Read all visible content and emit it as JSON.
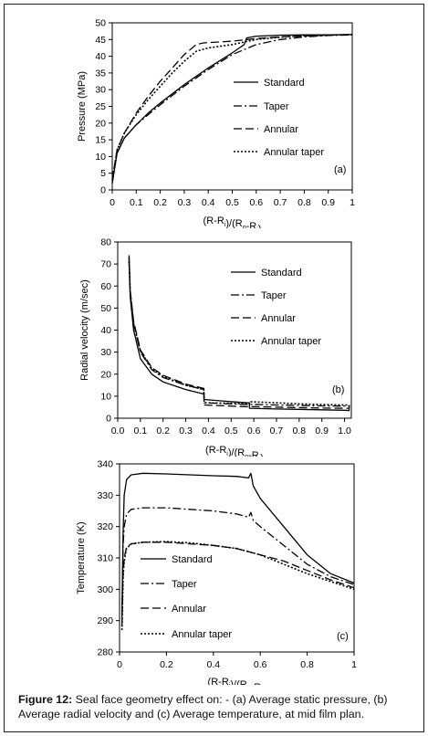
{
  "colors": {
    "line": "#000000",
    "border": "#1e1e1e"
  },
  "caption": {
    "label": "Figure 12:",
    "text": "Seal face geometry effect on: - (a) Average static pressure, (b) Average radial velocity and (c) Average temperature, at mid film plan."
  },
  "chart_data": [
    {
      "type": "line",
      "panel_label": "(a)",
      "xlabel": "(R-Ri)/(Ro-Ri)",
      "ylabel": "Pressure (MPa)",
      "xlim": [
        0,
        1
      ],
      "ylim": [
        0,
        50
      ],
      "xticks": [
        "0",
        "0.1",
        "0.2",
        "0.3",
        "0.4",
        "0.5",
        "0.6",
        "0.7",
        "0.8",
        "0.9",
        "1"
      ],
      "yticks": [
        "0",
        "5",
        "10",
        "15",
        "20",
        "25",
        "30",
        "35",
        "40",
        "45",
        "50"
      ],
      "grid": false,
      "legend_position": "right",
      "series": [
        {
          "name": "Standard",
          "style": "solid",
          "x": [
            0,
            0.02,
            0.05,
            0.1,
            0.15,
            0.2,
            0.3,
            0.4,
            0.5,
            0.55,
            0.56,
            0.6,
            0.7,
            0.8,
            0.9,
            1.0
          ],
          "y": [
            2,
            11,
            15.5,
            19.5,
            23,
            26,
            31.5,
            36.5,
            41,
            43.5,
            45.5,
            46,
            46.3,
            46.4,
            46.4,
            46.5
          ]
        },
        {
          "name": "Taper",
          "style": "dashdot",
          "x": [
            0,
            0.02,
            0.05,
            0.1,
            0.15,
            0.2,
            0.3,
            0.4,
            0.5,
            0.6,
            0.7,
            0.8,
            0.9,
            1.0
          ],
          "y": [
            2,
            11,
            15.5,
            19.5,
            22.5,
            25.5,
            31,
            36,
            40.5,
            43.5,
            45,
            45.8,
            46.2,
            46.4
          ]
        },
        {
          "name": "Annular",
          "style": "dash",
          "x": [
            0,
            0.02,
            0.05,
            0.1,
            0.15,
            0.2,
            0.25,
            0.3,
            0.35,
            0.38,
            0.5,
            0.6,
            0.7,
            0.8,
            0.9,
            1.0
          ],
          "y": [
            3,
            12,
            17,
            23,
            28,
            32.5,
            36.5,
            40.5,
            43.5,
            44,
            44.5,
            45.3,
            45.8,
            46.1,
            46.3,
            46.5
          ]
        },
        {
          "name": "Annular taper",
          "style": "dot",
          "x": [
            0,
            0.02,
            0.05,
            0.1,
            0.15,
            0.2,
            0.25,
            0.3,
            0.35,
            0.4,
            0.5,
            0.6,
            0.7,
            0.8,
            0.9,
            1.0
          ],
          "y": [
            3,
            12,
            17,
            22.5,
            27,
            31,
            35,
            38.5,
            41.5,
            42.5,
            43.5,
            45,
            45.7,
            46.1,
            46.3,
            46.5
          ]
        }
      ]
    },
    {
      "type": "line",
      "panel_label": "(b)",
      "xlabel": "(R-Ri)/(Ro-Ri)",
      "ylabel": "Radial velocity  (m/sec)",
      "xlim": [
        0,
        1.03
      ],
      "ylim": [
        0,
        80
      ],
      "xticks": [
        "0.0",
        "0.1",
        "0.2",
        "0.3",
        "0.4",
        "0.5",
        "0.6",
        "0.7",
        "0.8",
        "0.9",
        "1.0"
      ],
      "yticks": [
        "0",
        "10",
        "20",
        "30",
        "40",
        "50",
        "60",
        "70",
        "80"
      ],
      "grid": false,
      "legend_position": "right",
      "series": [
        {
          "name": "Standard",
          "style": "solid",
          "x": [
            0.05,
            0.055,
            0.07,
            0.1,
            0.15,
            0.2,
            0.3,
            0.38,
            0.381,
            0.5,
            0.58,
            0.581,
            0.7,
            0.8,
            0.9,
            1.0,
            1.02,
            1.021
          ],
          "y": [
            72,
            55,
            40,
            27,
            20,
            16.5,
            13,
            11,
            8.5,
            7.5,
            7,
            4.5,
            4.2,
            4.0,
            3.8,
            3.6,
            3.5,
            6
          ]
        },
        {
          "name": "Taper",
          "style": "dashdot",
          "x": [
            0.05,
            0.055,
            0.07,
            0.1,
            0.15,
            0.2,
            0.3,
            0.38,
            0.381,
            0.5,
            0.58,
            0.581,
            0.7,
            0.8,
            0.9,
            1.0,
            1.02
          ],
          "y": [
            71,
            57,
            43,
            30,
            22,
            18.5,
            15,
            13,
            7,
            6.5,
            6.2,
            6.3,
            6,
            5.8,
            5.6,
            5.5,
            5.5
          ]
        },
        {
          "name": "Annular",
          "style": "dash",
          "x": [
            0.05,
            0.055,
            0.07,
            0.1,
            0.15,
            0.2,
            0.3,
            0.38,
            0.381,
            0.5,
            0.58,
            0.581,
            0.7,
            0.8,
            0.9,
            1.0,
            1.02
          ],
          "y": [
            74,
            58,
            44,
            31,
            23,
            19.5,
            15.5,
            13.5,
            6,
            5.5,
            5.2,
            5.3,
            5.0,
            4.8,
            4.6,
            4.5,
            4.5
          ]
        },
        {
          "name": "Annular taper",
          "style": "dot",
          "x": [
            0.05,
            0.055,
            0.07,
            0.1,
            0.15,
            0.2,
            0.3,
            0.38,
            0.381,
            0.5,
            0.58,
            0.581,
            0.7,
            0.8,
            0.9,
            1.0,
            1.02
          ],
          "y": [
            73,
            57,
            43,
            30.5,
            22.5,
            19,
            15,
            13,
            7,
            6.8,
            6.6,
            7.5,
            7.0,
            6.5,
            6.2,
            6.0,
            6.0
          ]
        }
      ]
    },
    {
      "type": "line",
      "panel_label": "(c)",
      "xlabel": "(R-Ri)/(Ro-Ri)",
      "ylabel": "Temperature (K)",
      "xlim": [
        0,
        1
      ],
      "ylim": [
        280,
        340
      ],
      "xticks": [
        "0",
        "0.2",
        "0.4",
        "0.6",
        "0.8",
        "1"
      ],
      "yticks": [
        "280",
        "290",
        "300",
        "310",
        "320",
        "330",
        "340"
      ],
      "grid": false,
      "legend_position": "left",
      "series": [
        {
          "name": "Standard",
          "style": "solid",
          "x": [
            0.01,
            0.015,
            0.02,
            0.03,
            0.05,
            0.1,
            0.2,
            0.3,
            0.4,
            0.5,
            0.55,
            0.56,
            0.57,
            0.6,
            0.7,
            0.8,
            0.9,
            1.0
          ],
          "y": [
            292,
            318,
            330,
            335,
            336.5,
            337,
            336.8,
            336.5,
            336.2,
            336,
            335.5,
            337,
            333,
            329,
            320,
            311,
            305,
            302
          ]
        },
        {
          "name": "Taper",
          "style": "dashdot",
          "x": [
            0.01,
            0.015,
            0.02,
            0.03,
            0.05,
            0.1,
            0.2,
            0.3,
            0.4,
            0.5,
            0.55,
            0.56,
            0.57,
            0.6,
            0.7,
            0.8,
            0.9,
            1.0
          ],
          "y": [
            290,
            314,
            320,
            324,
            325.5,
            326,
            326,
            325.5,
            325,
            324,
            323,
            324.5,
            322,
            320,
            314,
            308,
            304,
            301.5
          ]
        },
        {
          "name": "Annular",
          "style": "dash",
          "x": [
            0.01,
            0.015,
            0.02,
            0.03,
            0.05,
            0.1,
            0.2,
            0.3,
            0.4,
            0.5,
            0.6,
            0.7,
            0.8,
            0.9,
            1.0
          ],
          "y": [
            288,
            305,
            310,
            313.5,
            314.5,
            315,
            315,
            314.5,
            314,
            313,
            311,
            309,
            306,
            303,
            300.5
          ]
        },
        {
          "name": "Annular taper",
          "style": "dot",
          "x": [
            0.01,
            0.015,
            0.02,
            0.03,
            0.05,
            0.1,
            0.2,
            0.3,
            0.4,
            0.5,
            0.6,
            0.7,
            0.8,
            0.9,
            1.0
          ],
          "y": [
            287,
            304,
            309,
            313,
            314.5,
            315,
            315.2,
            314.8,
            314,
            313,
            311,
            308,
            305,
            302.5,
            300
          ]
        }
      ]
    }
  ]
}
